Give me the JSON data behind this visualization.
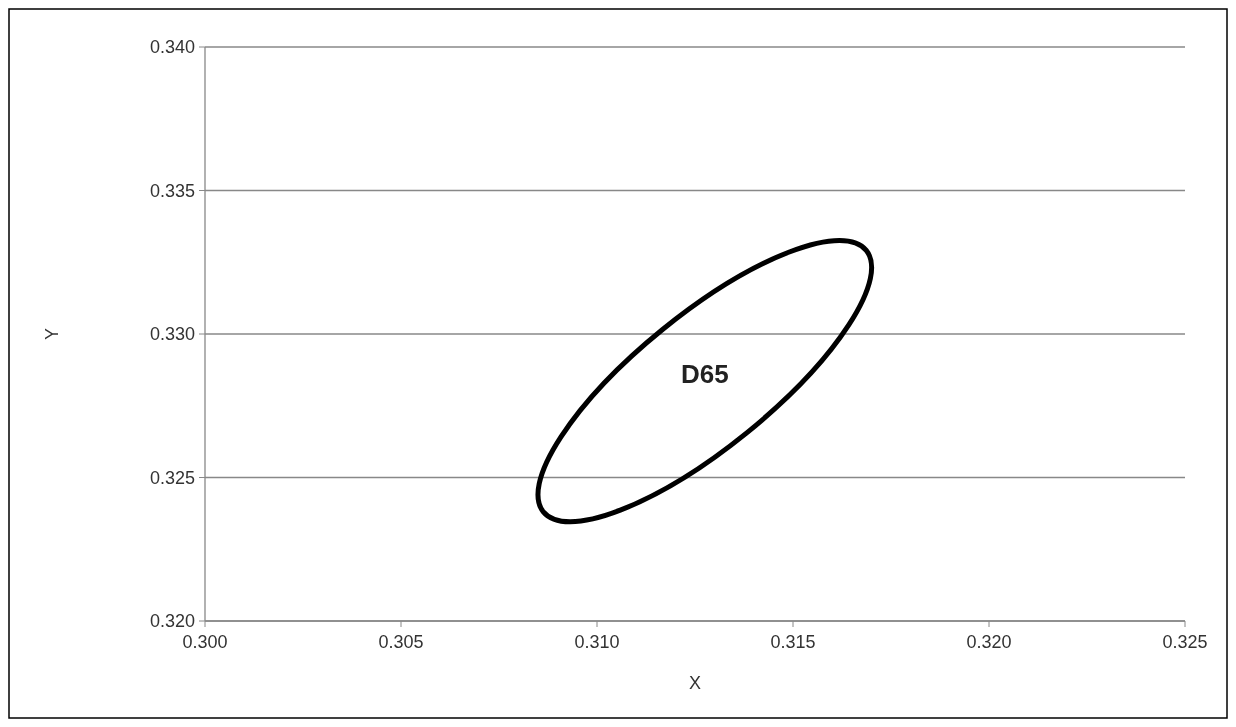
{
  "chart_data": {
    "type": "line",
    "xlabel": "X",
    "ylabel": "Y",
    "xlim": [
      0.3,
      0.325
    ],
    "xticks": [
      {
        "value": 0.3,
        "label": "0.300"
      },
      {
        "value": 0.305,
        "label": "0.305"
      },
      {
        "value": 0.31,
        "label": "0.310"
      },
      {
        "value": 0.315,
        "label": "0.315"
      },
      {
        "value": 0.32,
        "label": "0.320"
      },
      {
        "value": 0.325,
        "label": "0.325"
      }
    ],
    "ylim": [
      0.32,
      0.34
    ],
    "yticks": [
      {
        "value": 0.32,
        "label": "0.320"
      },
      {
        "value": 0.325,
        "label": "0.325"
      },
      {
        "value": 0.33,
        "label": "0.330"
      },
      {
        "value": 0.335,
        "label": "0.335"
      },
      {
        "value": 0.34,
        "label": "0.340"
      }
    ],
    "grid": "y",
    "annotations": [
      "D65"
    ]
  }
}
